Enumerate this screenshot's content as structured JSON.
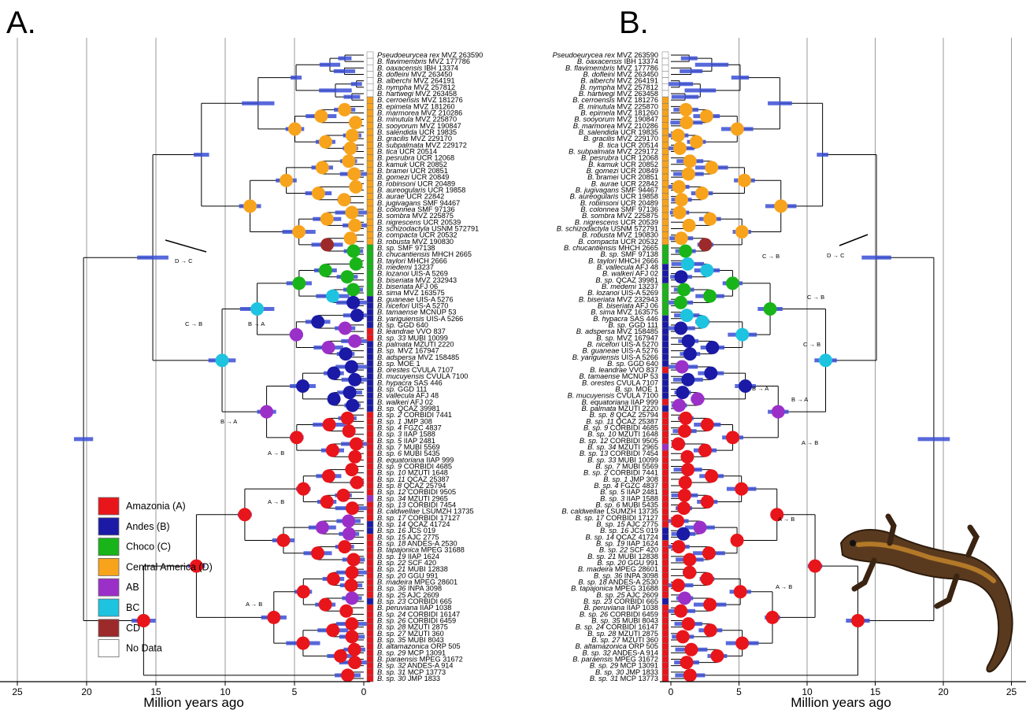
{
  "panels": [
    {
      "letter": "A.",
      "xlabel": "Million years ago"
    },
    {
      "letter": "B.",
      "xlabel": "Million years ago"
    }
  ],
  "axis_a_ticks": [
    "25",
    "20",
    "15",
    "10",
    "5",
    "0"
  ],
  "axis_b_ticks": [
    "0",
    "5",
    "10",
    "15",
    "20",
    "25"
  ],
  "legend": [
    {
      "label": "Amazonia (A)",
      "color": "#e8151b"
    },
    {
      "label": "Andes (B)",
      "color": "#1a1aa6"
    },
    {
      "label": "Choco (C)",
      "color": "#19b419"
    },
    {
      "label": "Central America (D)",
      "color": "#f7a31c"
    },
    {
      "label": "AB",
      "color": "#9b30c8"
    },
    {
      "label": "BC",
      "color": "#1ec3e0"
    },
    {
      "label": "CD",
      "color": "#9c2a2a"
    },
    {
      "label": "No Data",
      "color": "#ffffff"
    }
  ],
  "annotations_a": [
    "D → C",
    "C → B",
    "B → A",
    "B → A",
    "A → B",
    "A → B",
    "A → B"
  ],
  "annotations_b": [
    "D → C",
    "C → B",
    "C → B",
    "C → B",
    "B → A",
    "B → A",
    "A → B",
    "A → B",
    "A → B"
  ],
  "taxa_a": [
    [
      "Pseudoeurycea rex",
      "MVZ 263590",
      "N"
    ],
    [
      "B. flavimembris",
      "MVZ 177786",
      "N"
    ],
    [
      "B. oaxacensis",
      "IBH 13374",
      "N"
    ],
    [
      "B. dofleini",
      "MVZ 263450",
      "N"
    ],
    [
      "B. alberchi",
      "MVZ 264191",
      "N"
    ],
    [
      "B. nympha",
      "MVZ 257812",
      "N"
    ],
    [
      "B. hartwegi",
      "MVZ 263458",
      "N"
    ],
    [
      "B. cerroensis",
      "MVZ 181276",
      "D"
    ],
    [
      "B. epimela",
      "MVZ 181260",
      "D"
    ],
    [
      "B. marmorea",
      "MVZ 210286",
      "D"
    ],
    [
      "B. minutula",
      "MVZ 225870",
      "D"
    ],
    [
      "B. sooyorum",
      "MVZ 190847",
      "D"
    ],
    [
      "B. salendida",
      "UCR 19835",
      "D"
    ],
    [
      "B. gracilis",
      "MVZ 229170",
      "D"
    ],
    [
      "B. subpalmata",
      "MVZ 229172",
      "D"
    ],
    [
      "B. tica",
      "UCR 20514",
      "D"
    ],
    [
      "B. pesrubra",
      "UCR 12068",
      "D"
    ],
    [
      "B. kamuk",
      "UCR 20852",
      "D"
    ],
    [
      "B. bramei",
      "UCR 20851",
      "D"
    ],
    [
      "B. gomezi",
      "UCR 20849",
      "D"
    ],
    [
      "B. robinsoni",
      "UCR 20489",
      "D"
    ],
    [
      "B. aureogularis",
      "UCR 19858",
      "D"
    ],
    [
      "B. aurae",
      "UCR 22842",
      "D"
    ],
    [
      "B. jugivagans",
      "SMF 94467",
      "D"
    ],
    [
      "B. colonnea",
      "SMF 97136",
      "D"
    ],
    [
      "B. sombra",
      "MVZ 225875",
      "D"
    ],
    [
      "B. nigrescens",
      "UCR 20539",
      "D"
    ],
    [
      "B. schizodactyla",
      "USNM 572791",
      "D"
    ],
    [
      "B. compacta",
      "UCR 20532",
      "D"
    ],
    [
      "B. robusta",
      "MVZ 190830",
      "D"
    ],
    [
      "B. sp.",
      "SMF 97138",
      "C"
    ],
    [
      "B. chucantiensis",
      "MHCH 2665",
      "C"
    ],
    [
      "B. taylori",
      "MHCH 2666",
      "C"
    ],
    [
      "B. medemi",
      "13237",
      "C"
    ],
    [
      "B. lozanoi",
      "UIS-A 5269",
      "C"
    ],
    [
      "B. biseriata",
      "MVZ 232943",
      "C"
    ],
    [
      "B. biseriata",
      "AFJ 06",
      "C"
    ],
    [
      "B. sima",
      "MVZ 163575",
      "C"
    ],
    [
      "B. guaneae",
      "UIS-A 5276",
      "B"
    ],
    [
      "B. nicefori",
      "UIS-A 5270",
      "B"
    ],
    [
      "B. tamaense",
      "MCNUP 53",
      "B"
    ],
    [
      "B. yariguiensis",
      "UIS-A 5266",
      "B"
    ],
    [
      "B. sp.",
      "GGD 640",
      "B"
    ],
    [
      "B. leandrae",
      "VVO 837",
      "A"
    ],
    [
      "B. sp. 33",
      "MUBI 10099",
      "A"
    ],
    [
      "B. palmata",
      "MZUTI 2220",
      "B"
    ],
    [
      "B. sp.",
      "MVZ 167947",
      "B"
    ],
    [
      "B. adspersa",
      "MVZ 158485",
      "B"
    ],
    [
      "B. sp.",
      "MOE 1",
      "B"
    ],
    [
      "B. orestes",
      "CVULA 7107",
      "B"
    ],
    [
      "B. mucuyensis",
      "CVULA 7100",
      "B"
    ],
    [
      "B. hypacra",
      "SAS 446",
      "B"
    ],
    [
      "B. sp.",
      "GGD 111",
      "B"
    ],
    [
      "B. vallecula",
      "AFJ 48",
      "B"
    ],
    [
      "B. walkeri",
      "AFJ 02",
      "B"
    ],
    [
      "B. sp.",
      "QCAZ 39981",
      "B"
    ],
    [
      "B. sp. 2",
      "CORBIDI 7441",
      "A"
    ],
    [
      "B. sp. 1",
      "JMP 308",
      "A"
    ],
    [
      "B. sp. 4",
      "FGZC 4837",
      "A"
    ],
    [
      "B. sp. 3",
      "IIAP 1588",
      "A"
    ],
    [
      "B. sp. 5",
      "IIAP 2481",
      "A"
    ],
    [
      "B. sp. 7",
      "MUBI 5569",
      "A"
    ],
    [
      "B. sp. 6",
      "MUBI 5435",
      "A"
    ],
    [
      "B. equatoriana",
      "IIAP 999",
      "A"
    ],
    [
      "B. sp. 9",
      "CORBIDI 4685",
      "A"
    ],
    [
      "B. sp. 10",
      "MZUTI 1648",
      "A"
    ],
    [
      "B. sp. 11",
      "QCAZ 25387",
      "A"
    ],
    [
      "B. sp. 8",
      "QCAZ 25794",
      "A"
    ],
    [
      "B. sp. 12",
      "CORBIDI 9505",
      "A"
    ],
    [
      "B. sp. 34",
      "MZUTI 2965",
      "AB"
    ],
    [
      "B. sp. 13",
      "CORBIDI 7454",
      "A"
    ],
    [
      "B. caldwellae",
      "LSUMZH 13735",
      "A"
    ],
    [
      "B. sp. 17",
      "CORBIDI 17127",
      "A"
    ],
    [
      "B. sp. 14",
      "QCAZ 41724",
      "B"
    ],
    [
      "B. sp. 16",
      "JCS 019",
      "B"
    ],
    [
      "B. sp. 15",
      "AJC 2775",
      "A"
    ],
    [
      "B. sp. 18",
      "ANDES-A 2530",
      "A"
    ],
    [
      "B. tapajonica",
      "MPEG 31688",
      "A"
    ],
    [
      "B. sp. 19",
      "IIAP 1624",
      "A"
    ],
    [
      "B. sp. 22",
      "SCF 420",
      "A"
    ],
    [
      "B. sp. 21",
      "MUBI 12838",
      "A"
    ],
    [
      "B. sp. 20",
      "GGU 991",
      "A"
    ],
    [
      "B. madeira",
      "MPEG 28601",
      "A"
    ],
    [
      "B. sp. 36",
      "INPA 3098",
      "A"
    ],
    [
      "B. sp. 25",
      "AJC 2609",
      "A"
    ],
    [
      "B. sp. 23",
      "CORBIDI 665",
      "B"
    ],
    [
      "B. peruviana",
      "IIAP 1038",
      "A"
    ],
    [
      "B. sp. 24",
      "CORBIDI 16147",
      "A"
    ],
    [
      "B. sp. 26",
      "CORBIDI 6459",
      "A"
    ],
    [
      "B. sp. 28",
      "MZUTI 2875",
      "A"
    ],
    [
      "B. sp. 27",
      "MZUTI 360",
      "A"
    ],
    [
      "B. sp. 35",
      "MUBI 8043",
      "A"
    ],
    [
      "B. altamazonica",
      "ORP 505",
      "A"
    ],
    [
      "B. sp. 29",
      "MCP 13091",
      "A"
    ],
    [
      "B. paraensis",
      "MPEG 31672",
      "A"
    ],
    [
      "B. sp. 32",
      "ANDES-A 914",
      "A"
    ],
    [
      "B. sp. 31",
      "MCP 13773",
      "A"
    ],
    [
      "B. sp. 30",
      "JMP 1833",
      "A"
    ]
  ],
  "taxa_b": [
    [
      "Pseudoeurycea rex",
      "MVZ 263590",
      "N"
    ],
    [
      "B. oaxacensis",
      "IBH 13374",
      "N"
    ],
    [
      "B. flavimembris",
      "MVZ 177786",
      "N"
    ],
    [
      "B. dofleini",
      "MVZ 263450",
      "N"
    ],
    [
      "B. alberchi",
      "MVZ 264191",
      "N"
    ],
    [
      "B. nympha",
      "MVZ 257812",
      "N"
    ],
    [
      "B. hartwegi",
      "MVZ 263458",
      "N"
    ],
    [
      "B. cerroensis",
      "MVZ 181276",
      "D"
    ],
    [
      "B. minutula",
      "MVZ 225870",
      "D"
    ],
    [
      "B. epimela",
      "MVZ 181260",
      "D"
    ],
    [
      "B. sooyorum",
      "MVZ 190847",
      "D"
    ],
    [
      "B. marmorea",
      "MVZ 210286",
      "D"
    ],
    [
      "B. salendida",
      "UCR 19835",
      "D"
    ],
    [
      "B. gracilis",
      "MVZ 229170",
      "D"
    ],
    [
      "B. tica",
      "UCR 20514",
      "D"
    ],
    [
      "B. subpalmata",
      "MVZ 229172",
      "D"
    ],
    [
      "B. pesrubra",
      "UCR 12068",
      "D"
    ],
    [
      "B. kamuk",
      "UCR 20852",
      "D"
    ],
    [
      "B. gomezi",
      "UCR 20849",
      "D"
    ],
    [
      "B. bramei",
      "UCR 20851",
      "D"
    ],
    [
      "B. aurae",
      "UCR 22842",
      "D"
    ],
    [
      "B. jugivagans",
      "SMF 94467",
      "D"
    ],
    [
      "B. aureogularis",
      "UCR 19858",
      "D"
    ],
    [
      "B. robinsoni",
      "UCR 20489",
      "D"
    ],
    [
      "B. colonnea",
      "SMF 97136",
      "D"
    ],
    [
      "B. sombra",
      "MVZ 225875",
      "D"
    ],
    [
      "B. nigrescens",
      "UCR 20539",
      "D"
    ],
    [
      "B. schizodactyla",
      "USNM 572791",
      "D"
    ],
    [
      "B. robusta",
      "MVZ 190830",
      "D"
    ],
    [
      "B. compacta",
      "UCR 20532",
      "D"
    ],
    [
      "B. chucantiensis",
      "MHCH 2665",
      "C"
    ],
    [
      "B. sp.",
      "SMF 97138",
      "C"
    ],
    [
      "B. taylori",
      "MHCH 2666",
      "C"
    ],
    [
      "B. vallecula",
      "AFJ 48",
      "B"
    ],
    [
      "B. walkeri",
      "AFJ 02",
      "B"
    ],
    [
      "B. sp.",
      "QCAZ 39981",
      "B"
    ],
    [
      "B. medemi",
      "13237",
      "C"
    ],
    [
      "B. lozanoi",
      "UIS-A 5269",
      "C"
    ],
    [
      "B. biseriata",
      "MVZ 232943",
      "C"
    ],
    [
      "B. biseriata",
      "AFJ 06",
      "C"
    ],
    [
      "B. sima",
      "MVZ 163575",
      "C"
    ],
    [
      "B. hypacra",
      "SAS 446",
      "B"
    ],
    [
      "B. sp.",
      "GGD 111",
      "B"
    ],
    [
      "B. adspersa",
      "MVZ 158485",
      "B"
    ],
    [
      "B. sp.",
      "MVZ 167947",
      "B"
    ],
    [
      "B. nicefori",
      "UIS-A 5270",
      "B"
    ],
    [
      "B. guaneae",
      "UIS-A 5276",
      "B"
    ],
    [
      "B. yariguiensis",
      "UIS-A 5266",
      "B"
    ],
    [
      "B. sp.",
      "GGD 640",
      "B"
    ],
    [
      "B. leandrae",
      "VVO 837",
      "A"
    ],
    [
      "B. tamaense",
      "MCNUP 53",
      "B"
    ],
    [
      "B. orestes",
      "CVULA 7107",
      "B"
    ],
    [
      "B. sp.",
      "MOE 1",
      "B"
    ],
    [
      "B. mucuyensis",
      "CVULA 7100",
      "B"
    ],
    [
      "B. equatoriana",
      "IIAP 999",
      "A"
    ],
    [
      "B. palmata",
      "MZUTI 2220",
      "B"
    ],
    [
      "B. sp. 8",
      "QCAZ 25794",
      "A"
    ],
    [
      "B. sp. 11",
      "QCAZ 25387",
      "A"
    ],
    [
      "B. sp. 9",
      "CORBIDI 4685",
      "A"
    ],
    [
      "B. sp. 10",
      "MZUTI 1648",
      "A"
    ],
    [
      "B. sp. 12",
      "CORBIDI 9505",
      "A"
    ],
    [
      "B. sp. 34",
      "MZUTI 2965",
      "AB"
    ],
    [
      "B. sp. 13",
      "CORBIDI 7454",
      "A"
    ],
    [
      "B. sp. 33",
      "MUBI 10099",
      "A"
    ],
    [
      "B. sp. 7",
      "MUBI 5569",
      "A"
    ],
    [
      "B. sp. 2",
      "CORBIDI 7441",
      "A"
    ],
    [
      "B. sp. 1",
      "JMP 308",
      "A"
    ],
    [
      "B. sp. 4",
      "FGZC 4837",
      "A"
    ],
    [
      "B. sp. 5",
      "IIAP 2481",
      "A"
    ],
    [
      "B. sp. 3",
      "IIAP 1588",
      "A"
    ],
    [
      "B. sp. 6",
      "MUBI 5435",
      "A"
    ],
    [
      "B. caldwellae",
      "LSUMZH 13735",
      "A"
    ],
    [
      "B. sp. 17",
      "CORBIDI 17127",
      "A"
    ],
    [
      "B. sp. 15",
      "AJC 2775",
      "A"
    ],
    [
      "B. sp. 16",
      "JCS 019",
      "B"
    ],
    [
      "B. sp. 14",
      "QCAZ 41724",
      "B"
    ],
    [
      "B. sp. 19",
      "IIAP 1624",
      "A"
    ],
    [
      "B. sp. 22",
      "SCF 420",
      "A"
    ],
    [
      "B. sp. 21",
      "MUBI 12838",
      "A"
    ],
    [
      "B. sp. 20",
      "GGU 991",
      "A"
    ],
    [
      "B. madeira",
      "MPEG 28601",
      "A"
    ],
    [
      "B. sp. 36",
      "INPA 3098",
      "A"
    ],
    [
      "B. sp. 18",
      "ANDES-A 2530",
      "A"
    ],
    [
      "B. tapajonica",
      "MPEG 31688",
      "A"
    ],
    [
      "B. sp. 25",
      "AJC 2609",
      "A"
    ],
    [
      "B. sp. 23",
      "CORBIDI 665",
      "B"
    ],
    [
      "B. peruviana",
      "IIAP 1038",
      "A"
    ],
    [
      "B. sp. 26",
      "CORBIDI 6459",
      "A"
    ],
    [
      "B. sp. 35",
      "MUBI 8043",
      "A"
    ],
    [
      "B. sp. 24",
      "CORBIDI 16147",
      "A"
    ],
    [
      "B. sp. 28",
      "MZUTI 2875",
      "A"
    ],
    [
      "B. sp. 27",
      "MZUTI 360",
      "A"
    ],
    [
      "B. altamazonica",
      "ORP 505",
      "A"
    ],
    [
      "B. sp. 32",
      "ANDES-A 914",
      "A"
    ],
    [
      "B. paraensis",
      "MPEG 31672",
      "A"
    ],
    [
      "B. sp. 29",
      "MCP 13091",
      "A"
    ],
    [
      "B. sp. 30",
      "JMP 1833",
      "A"
    ],
    [
      "B. sp. 31",
      "MCP 13773",
      "A"
    ]
  ]
}
